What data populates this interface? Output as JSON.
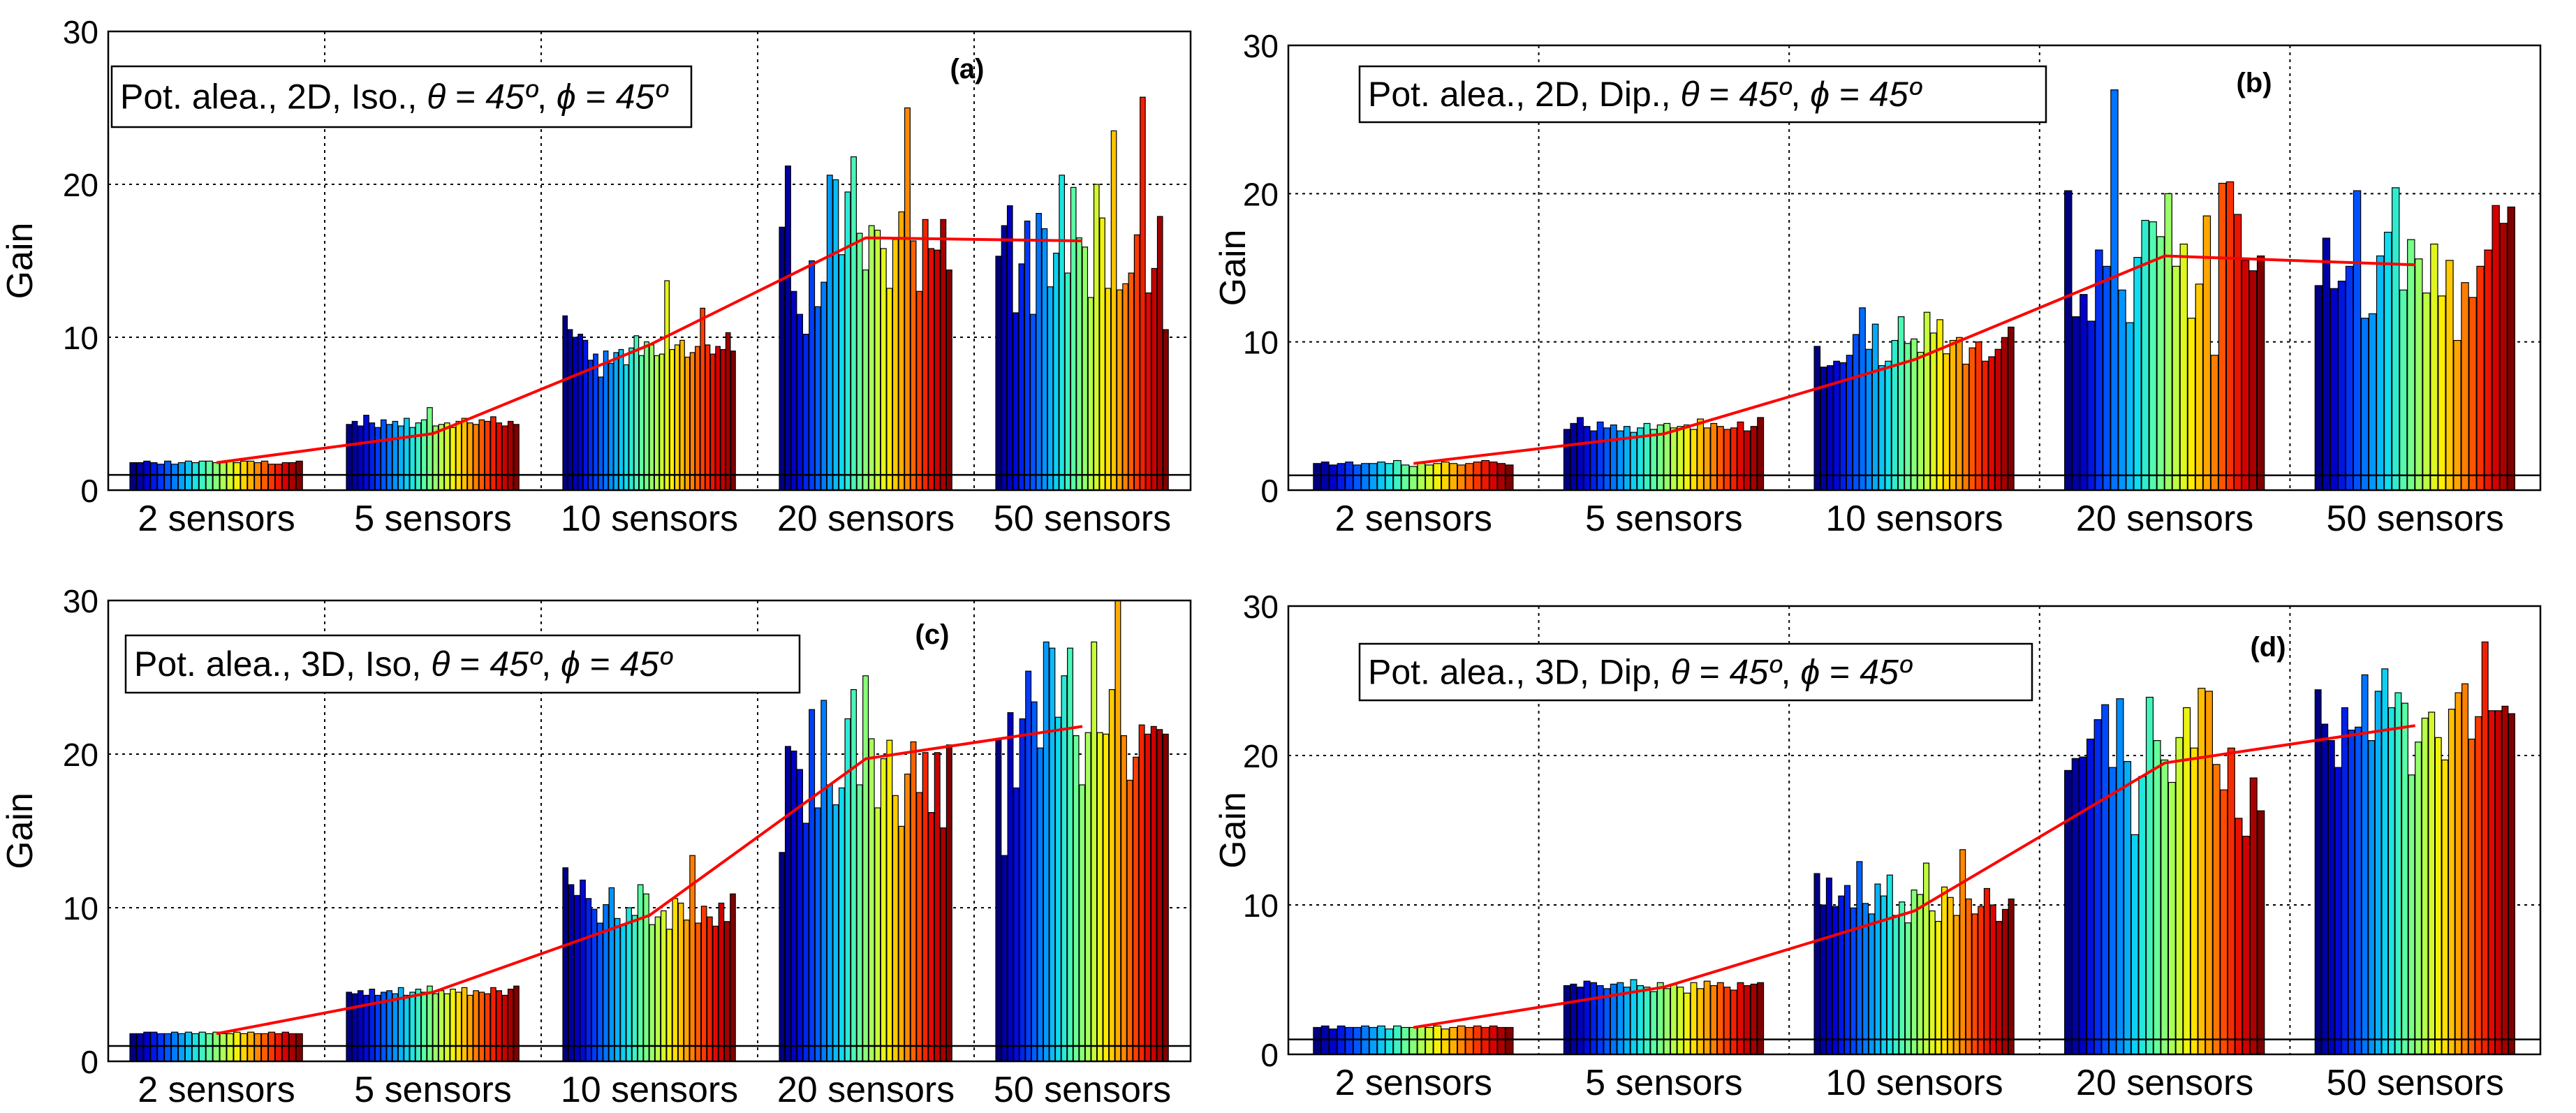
{
  "figure": {
    "bar_colormap": [
      "#000080",
      "#0000d4",
      "#0040ff",
      "#0090ff",
      "#10e0ef",
      "#60ffa0",
      "#b0ff50",
      "#fff000",
      "#ffa000",
      "#ff4000",
      "#e00000",
      "#800000"
    ],
    "trend_color": "#ff0000",
    "baseline_color": "#000000"
  },
  "chart_data": [
    {
      "type": "bar",
      "panel": "(a)",
      "title": "",
      "legend": {
        "prefix": "Pot. alea., 2D, Iso., ",
        "theta_symbol": "θ",
        "theta_value": "45º",
        "phi_symbol": "ϕ",
        "phi_value": "45º",
        "equals": " = ",
        "separator": ", ",
        "placement": "top-left"
      },
      "xlabel": "",
      "ylabel": "Gain",
      "ylim": [
        0,
        30
      ],
      "yticks": [
        "0",
        "10",
        "20",
        "30"
      ],
      "grid": true,
      "baseline": 1,
      "categories": [
        "2 sensors",
        "5 sensors",
        "10 sensors",
        "20 sensors",
        "50 sensors"
      ],
      "groups": [
        [
          1.8,
          1.8,
          1.9,
          1.8,
          1.7,
          1.9,
          1.7,
          1.8,
          1.9,
          1.8,
          1.9,
          1.9,
          1.8,
          1.8,
          1.9,
          1.8,
          1.9,
          1.9,
          1.8,
          1.9,
          1.7,
          1.7,
          1.8,
          1.8,
          1.9
        ],
        [
          4.3,
          4.5,
          4.2,
          4.9,
          4.4,
          4.1,
          4.6,
          4.3,
          4.5,
          4.2,
          4.7,
          4.1,
          4.4,
          4.6,
          5.4,
          4.2,
          4.3,
          4.4,
          4.1,
          4.5,
          4.7,
          4.4,
          4.3,
          4.6,
          4.5,
          4.8,
          4.4,
          4.2,
          4.5,
          4.3
        ],
        [
          11.4,
          10.5,
          10,
          10.2,
          9.8,
          8.5,
          8.9,
          7.4,
          9.1,
          8.3,
          9.0,
          9.2,
          8.2,
          9.3,
          10.1,
          8.8,
          9.7,
          9.5,
          8.8,
          8.9,
          13.7,
          9.2,
          9.5,
          9.8,
          8.7,
          9.0,
          9.4,
          11.9,
          9.5,
          8.9,
          9.4,
          9.2,
          10.3,
          9.1
        ],
        [
          17.2,
          21.2,
          13,
          11.5,
          10.2,
          15,
          12,
          13.6,
          20.6,
          20.3,
          15.4,
          19.5,
          21.8,
          16.8,
          14.4,
          17.3,
          17.0,
          15.8,
          13.2,
          16.4,
          18.2,
          25,
          16.3,
          13,
          17.7,
          15.8,
          15.7,
          17.7,
          14.4
        ],
        [
          15.3,
          17.3,
          18.6,
          11.6,
          14.8,
          17.6,
          11.5,
          18.1,
          17.1,
          13.3,
          15.5,
          20.6,
          14.2,
          19.8,
          16.5,
          15.9,
          12.6,
          20.0,
          17.8,
          13.2,
          23.5,
          13.1,
          13.5,
          14.2,
          16.7,
          25.7,
          12.9,
          14.5,
          17.9,
          10.5
        ]
      ],
      "trend": [
        1.8,
        3.7,
        9.5,
        16.5,
        16.3
      ]
    },
    {
      "type": "bar",
      "panel": "(b)",
      "title": "",
      "legend": {
        "prefix": "Pot. alea., 2D, Dip., ",
        "theta_symbol": "θ",
        "theta_value": "45º",
        "phi_symbol": "ϕ",
        "phi_value": "45º",
        "equals": " = ",
        "separator": ", ",
        "placement": "top-left"
      },
      "xlabel": "",
      "ylabel": "Gain",
      "ylim": [
        0,
        30
      ],
      "yticks": [
        "0",
        "10",
        "20",
        "30"
      ],
      "grid": true,
      "baseline": 1,
      "categories": [
        "2 sensors",
        "5 sensors",
        "10 sensors",
        "20 sensors",
        "50 sensors"
      ],
      "groups": [
        [
          1.8,
          1.9,
          1.7,
          1.8,
          1.9,
          1.7,
          1.8,
          1.8,
          1.9,
          1.8,
          2.0,
          1.7,
          1.6,
          1.8,
          1.7,
          1.8,
          1.9,
          1.8,
          1.7,
          1.8,
          1.9,
          2.0,
          1.9,
          1.8,
          1.7
        ],
        [
          4.1,
          4.5,
          4.9,
          4.3,
          4.0,
          4.6,
          4.2,
          4.4,
          4.0,
          4.3,
          3.9,
          4.2,
          4.5,
          4.1,
          4.4,
          4.5,
          4.2,
          4.3,
          4.4,
          4.1,
          4.8,
          4.2,
          4.5,
          4.3,
          4.1,
          4.2,
          4.6,
          4.0,
          4.3,
          4.9
        ],
        [
          9.7,
          8.3,
          8.4,
          8.7,
          8.6,
          9.1,
          10.5,
          12.3,
          9.5,
          11.2,
          8.4,
          8.7,
          10.1,
          11.7,
          9.9,
          10.2,
          9.3,
          12.0,
          10.6,
          11.5,
          9.2,
          10.1,
          10.3,
          8.5,
          9.6,
          10.0,
          8.7,
          9.0,
          9.5,
          10.3,
          11.0
        ],
        [
          20.2,
          11.7,
          13.2,
          11.4,
          16.2,
          15.1,
          27.0,
          13.5,
          11.3,
          15.7,
          18.2,
          18.1,
          17.1,
          20.0,
          15.1,
          16.6,
          11.6,
          13.9,
          18.5,
          9.1,
          20.7,
          20.8,
          18.6,
          15.5,
          14.8,
          15.8
        ],
        [
          13.8,
          17.0,
          13.6,
          14.1,
          15.1,
          20.2,
          11.6,
          11.9,
          15.8,
          17.4,
          20.4,
          13.5,
          16.9,
          15.6,
          13.3,
          16.6,
          13.1,
          15.5,
          10.1,
          14.0,
          13.0,
          15.1,
          16.2,
          19.2,
          18.0,
          19.1
        ]
      ],
      "trend": [
        1.8,
        3.8,
        8.8,
        15.8,
        15.2
      ]
    },
    {
      "type": "bar",
      "panel": "(c)",
      "title": "",
      "legend": {
        "prefix": "Pot. alea., 3D, Iso, ",
        "theta_symbol": "θ",
        "theta_value": "45º",
        "phi_symbol": "ϕ",
        "phi_value": "45º",
        "equals": " = ",
        "separator": ", ",
        "placement": "top-left"
      },
      "xlabel": "",
      "ylabel": "Gain",
      "ylim": [
        0,
        30
      ],
      "yticks": [
        "0",
        "10",
        "20",
        "30"
      ],
      "grid": true,
      "baseline": 1,
      "categories": [
        "2 sensors",
        "5 sensors",
        "10 sensors",
        "20 sensors",
        "50 sensors"
      ],
      "groups": [
        [
          1.8,
          1.8,
          1.9,
          1.9,
          1.8,
          1.8,
          1.9,
          1.8,
          1.9,
          1.8,
          1.9,
          1.8,
          1.9,
          1.8,
          1.8,
          1.9,
          1.8,
          1.9,
          1.8,
          1.8,
          1.9,
          1.8,
          1.9,
          1.8,
          1.8
        ],
        [
          4.5,
          4.4,
          4.6,
          4.3,
          4.7,
          4.3,
          4.5,
          4.6,
          4.4,
          4.8,
          4.3,
          4.5,
          4.7,
          4.5,
          4.9,
          4.4,
          4.6,
          4.4,
          4.7,
          4.5,
          4.8,
          4.3,
          4.6,
          4.5,
          4.4,
          4.8,
          4.6,
          4.3,
          4.7,
          4.9
        ],
        [
          12.6,
          11.5,
          10.8,
          11.8,
          10.6,
          9.9,
          9.0,
          10.2,
          11.3,
          9.3,
          8.9,
          10.0,
          9.5,
          11.5,
          10.9,
          8.9,
          9.4,
          9.8,
          8.6,
          10.6,
          10.3,
          9.2,
          13.4,
          9.0,
          10.1,
          9.4,
          8.8,
          10.3,
          9.1,
          10.9
        ],
        [
          13.6,
          20.5,
          20.2,
          19.0,
          15.5,
          22.9,
          16.5,
          23.5,
          18.0,
          16.7,
          17.8,
          22.3,
          24.2,
          18.0,
          25.1,
          21.0,
          16.5,
          19.7,
          20.9,
          17.3,
          15.3,
          18.7,
          20.8,
          17.5,
          20.1,
          16.2,
          20.1,
          15.2,
          20.6
        ],
        [
          21.0,
          13.4,
          22.7,
          17.8,
          22.3,
          25.4,
          23.4,
          20.4,
          27.3,
          26.9,
          22.4,
          25.1,
          26.9,
          21.2,
          18.0,
          21.4,
          27.3,
          21.4,
          21.3,
          24.2,
          30,
          21.2,
          18.3,
          19.8,
          21.9,
          21.3,
          21.8,
          21.6,
          21.3
        ]
      ],
      "trend": [
        1.8,
        4.5,
        9.5,
        19.7,
        21.8
      ]
    },
    {
      "type": "bar",
      "panel": "(d)",
      "title": "",
      "legend": {
        "prefix": "Pot. alea., 3D, Dip, ",
        "theta_symbol": "θ",
        "theta_value": "45º",
        "phi_symbol": "ϕ",
        "phi_value": "45º",
        "equals": " = ",
        "separator": ", ",
        "placement": "top-left"
      },
      "xlabel": "",
      "ylabel": "Gain",
      "ylim": [
        0,
        30
      ],
      "yticks": [
        "0",
        "10",
        "20",
        "30"
      ],
      "grid": true,
      "baseline": 1,
      "categories": [
        "2 sensors",
        "5 sensors",
        "10 sensors",
        "20 sensors",
        "50 sensors"
      ],
      "groups": [
        [
          1.8,
          1.9,
          1.7,
          1.9,
          1.8,
          1.8,
          1.9,
          1.8,
          1.9,
          1.7,
          1.9,
          1.8,
          1.8,
          1.9,
          1.8,
          1.9,
          1.7,
          1.8,
          1.9,
          1.8,
          1.9,
          1.8,
          1.9,
          1.8,
          1.8
        ],
        [
          4.6,
          4.7,
          4.5,
          4.9,
          4.8,
          4.6,
          4.4,
          4.7,
          4.8,
          4.5,
          5.0,
          4.6,
          4.5,
          4.2,
          4.8,
          4.4,
          4.7,
          4.5,
          4.1,
          4.8,
          4.4,
          4.9,
          4.6,
          4.8,
          4.5,
          4.3,
          4.8,
          4.6,
          4.7,
          4.8
        ],
        [
          12.1,
          10.0,
          11.8,
          9.9,
          10.6,
          11.3,
          9.8,
          12.9,
          10.1,
          9.4,
          11.4,
          10.6,
          12.0,
          9.3,
          10.2,
          8.8,
          11.0,
          10.7,
          12.8,
          9.6,
          8.9,
          11.2,
          10.5,
          9.3,
          13.7,
          10.4,
          9.4,
          9.9,
          11.1,
          10.0,
          8.9,
          9.7,
          10.4
        ],
        [
          19.0,
          19.8,
          19.9,
          21.1,
          22.4,
          23.4,
          19.2,
          23.8,
          19.6,
          14.7,
          18.6,
          23.9,
          21.0,
          19.7,
          18.2,
          21.2,
          23.2,
          20.5,
          24.5,
          24.3,
          19.4,
          17.7,
          20.5,
          15.8,
          14.6,
          18.5,
          16.3
        ],
        [
          24.4,
          22.1,
          21.0,
          19.2,
          23.2,
          21.7,
          21.9,
          25.4,
          21.0,
          24.3,
          25.8,
          23.2,
          24.2,
          23.5,
          18.7,
          20.9,
          22.5,
          22.9,
          21.2,
          19.7,
          23.1,
          24.2,
          24.8,
          21.1,
          22.6,
          27.6,
          23.0,
          23.0,
          23.3,
          22.8
        ]
      ],
      "trend": [
        1.8,
        4.5,
        9.6,
        19.5,
        22.0
      ]
    }
  ]
}
